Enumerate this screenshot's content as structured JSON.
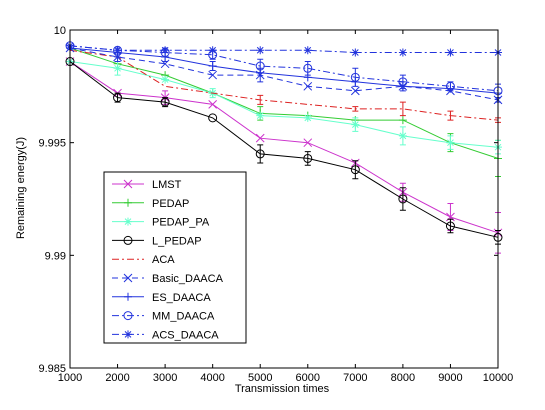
{
  "chart_data": {
    "type": "line",
    "xlabel": "Transmission times",
    "ylabel": "Remaining energy(J)",
    "x": [
      1000,
      2000,
      3000,
      4000,
      5000,
      6000,
      7000,
      8000,
      9000,
      10000
    ],
    "xlim": [
      1000,
      10000
    ],
    "ylim": [
      9.985,
      10
    ],
    "xticks": [
      "1000",
      "2000",
      "3000",
      "4000",
      "5000",
      "6000",
      "7000",
      "8000",
      "9000",
      "10000"
    ],
    "yticks": [
      "9.985",
      "9.99",
      "9.995",
      "10"
    ],
    "grid": false,
    "legend_position": "lower-left",
    "series": [
      {
        "name": "LMST",
        "color": "#cc33cc",
        "marker": "x",
        "dash": "solid",
        "values": [
          9.9986,
          9.9972,
          9.997,
          9.9967,
          9.9952,
          9.995,
          9.9941,
          9.9928,
          9.9917,
          9.991
        ],
        "errors": [
          0,
          0,
          0.0003,
          0,
          0,
          0,
          0,
          0.0004,
          0.0006,
          0.0009
        ]
      },
      {
        "name": "PEDAP",
        "color": "#33cc33",
        "marker": "+",
        "dash": "solid",
        "values": [
          9.9992,
          9.9985,
          9.998,
          9.9972,
          9.9963,
          9.9962,
          9.996,
          9.996,
          9.995,
          9.9943
        ],
        "errors": [
          0,
          0,
          0,
          0,
          0.0003,
          0,
          0,
          0,
          0.0004,
          0.0008
        ]
      },
      {
        "name": "PEDAP_PA",
        "color": "#66ffcc",
        "marker": "*",
        "dash": "solid",
        "values": [
          9.9986,
          9.9983,
          9.9978,
          9.9972,
          9.9962,
          9.9961,
          9.9958,
          9.9953,
          9.995,
          9.9948
        ],
        "errors": [
          0,
          0.0003,
          0,
          0.0002,
          0,
          0,
          0.0003,
          0.0004,
          0.0003,
          0.0003
        ]
      },
      {
        "name": "L_PEDAP",
        "color": "#000000",
        "marker": "o",
        "dash": "solid",
        "values": [
          9.9986,
          9.997,
          9.9968,
          9.9961,
          9.9945,
          9.9943,
          9.9938,
          9.9925,
          9.9913,
          9.9908
        ],
        "errors": [
          0,
          0.0002,
          0.0002,
          0,
          0.0004,
          0.0003,
          0.0004,
          0.0005,
          0.0003,
          0.0003
        ]
      },
      {
        "name": "ACA",
        "color": "#dd2222",
        "marker": "none",
        "dash": "dashdot",
        "values": [
          9.9991,
          9.9988,
          9.9975,
          9.9972,
          9.9969,
          9.9967,
          9.9965,
          9.9965,
          9.9962,
          9.996
        ],
        "errors": [
          0,
          0,
          0,
          0,
          0.0002,
          0,
          0.0001,
          0.0003,
          0.0002,
          0.0001
        ]
      },
      {
        "name": "Basic_DAACA",
        "color": "#2233dd",
        "marker": "x",
        "dash": "dashed",
        "values": [
          9.9992,
          9.9988,
          9.9985,
          9.998,
          9.998,
          9.9975,
          9.9973,
          9.9975,
          9.9973,
          9.9969
        ],
        "errors": [
          0,
          0.0002,
          0,
          0,
          0.0003,
          0,
          0,
          0.0002,
          0,
          0.0001
        ]
      },
      {
        "name": "ES_DAACA",
        "color": "#2233dd",
        "marker": "+",
        "dash": "solid",
        "values": [
          9.9992,
          9.999,
          9.9988,
          9.9984,
          9.9981,
          9.9979,
          9.9977,
          9.9975,
          9.9974,
          9.9972
        ],
        "errors": [
          0,
          0.0002,
          0.0002,
          0.0002,
          0,
          0,
          0,
          0,
          0,
          0
        ]
      },
      {
        "name": "MM_DAACA",
        "color": "#2233dd",
        "marker": "o",
        "dash": "dashdot",
        "values": [
          9.9993,
          9.9991,
          9.999,
          9.9989,
          9.9984,
          9.9983,
          9.9979,
          9.9977,
          9.9975,
          9.9973
        ],
        "errors": [
          0,
          0,
          0.0002,
          0.0002,
          0.0003,
          0.0003,
          0.0004,
          0.0003,
          0.0002,
          0.0003
        ]
      },
      {
        "name": "ACS_DAACA",
        "color": "#2233dd",
        "marker": "*",
        "dash": "dashdot",
        "values": [
          9.9993,
          9.9991,
          9.9991,
          9.9991,
          9.9991,
          9.9991,
          9.999,
          9.999,
          9.999,
          9.999
        ],
        "errors": [
          0,
          0,
          0,
          0,
          0,
          0,
          0,
          0,
          0,
          0
        ]
      }
    ]
  }
}
